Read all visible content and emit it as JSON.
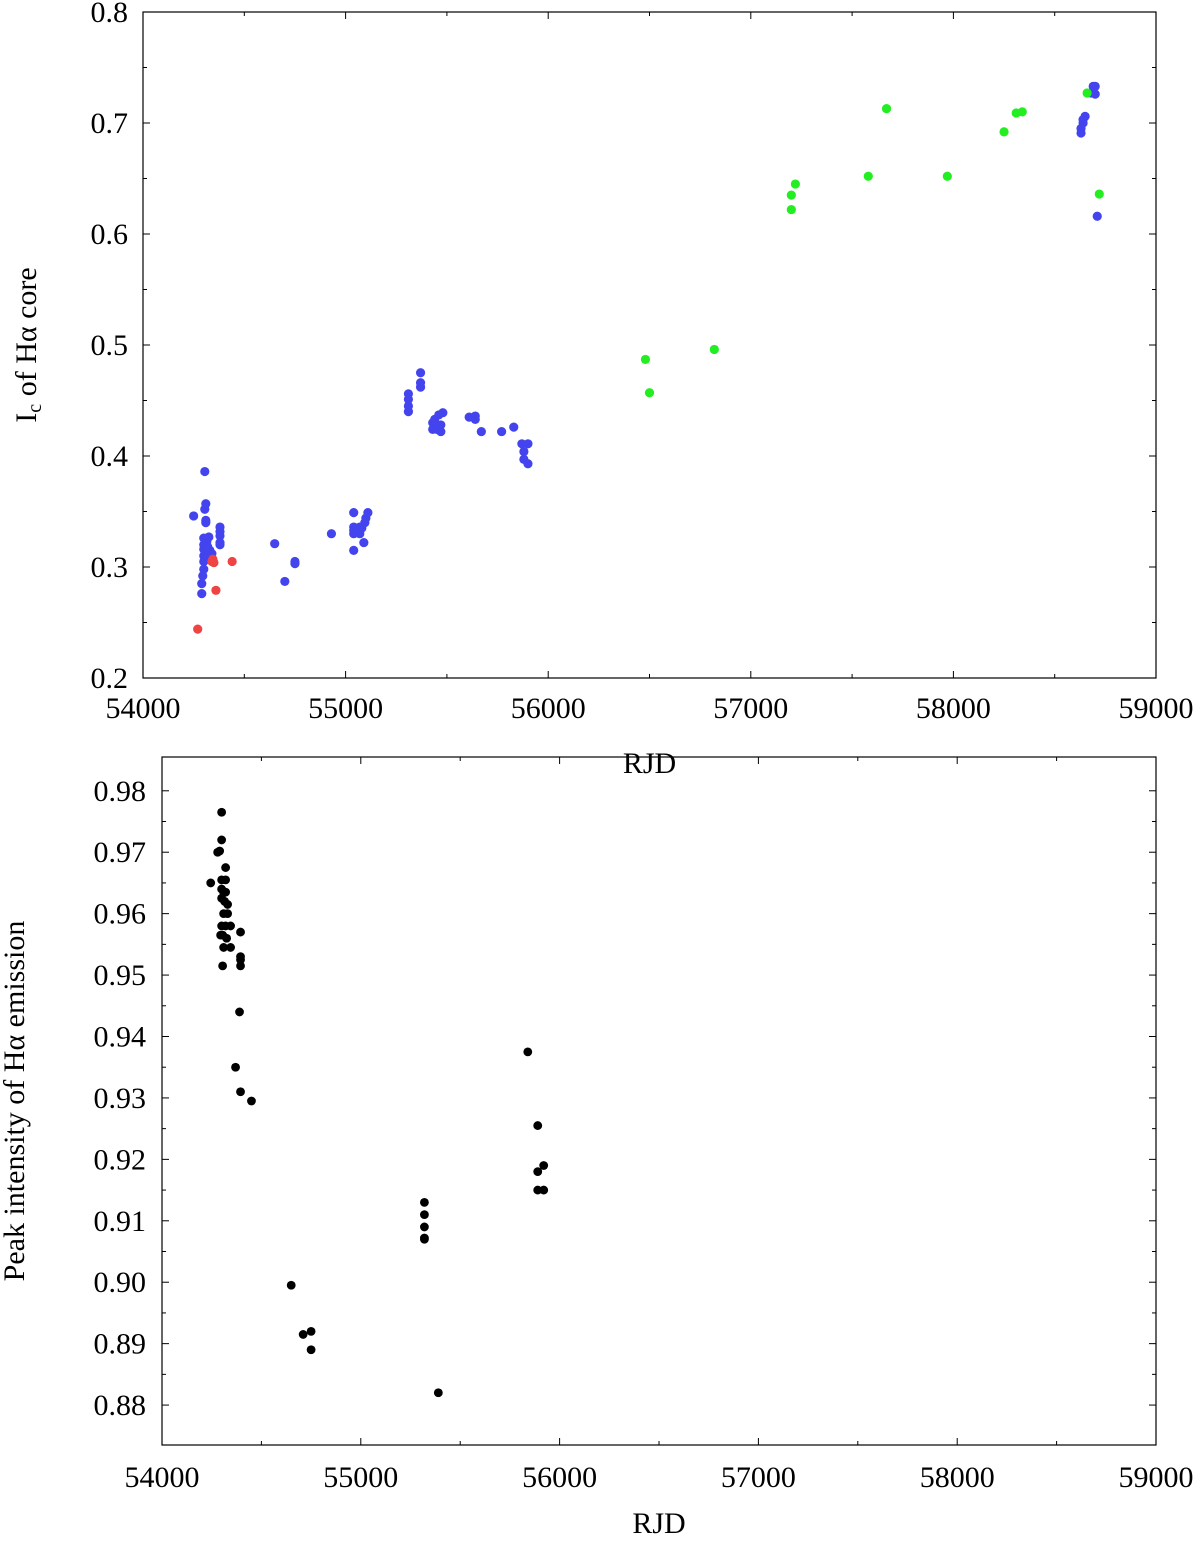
{
  "chart_data": [
    {
      "type": "scatter",
      "title": "",
      "xlabel": "RJD",
      "ylabel_parts": [
        "I",
        "c",
        " of Hα core"
      ],
      "xlim": [
        54000,
        59000
      ],
      "ylim": [
        0.2,
        0.8
      ],
      "xticks": [
        54000,
        55000,
        56000,
        57000,
        58000,
        59000
      ],
      "xtick_labels": [
        "54000",
        "55000",
        "56000",
        "57000",
        "58000",
        "59000"
      ],
      "yticks": [
        0.2,
        0.3,
        0.4,
        0.5,
        0.6,
        0.7,
        0.8
      ],
      "ytick_labels": [
        "0.2",
        "0.3",
        "0.4",
        "0.5",
        "0.6",
        "0.7",
        "0.8"
      ],
      "grid": false,
      "legend": "none",
      "series": [
        {
          "color": "#4444ee",
          "points": [
            [
              54250,
              0.346
            ],
            [
              54290,
              0.276
            ],
            [
              54290,
              0.285
            ],
            [
              54295,
              0.292
            ],
            [
              54300,
              0.298
            ],
            [
              54300,
              0.305
            ],
            [
              54300,
              0.31
            ],
            [
              54300,
              0.316
            ],
            [
              54300,
              0.32
            ],
            [
              54300,
              0.326
            ],
            [
              54305,
              0.386
            ],
            [
              54305,
              0.352
            ],
            [
              54310,
              0.357
            ],
            [
              54310,
              0.34
            ],
            [
              54310,
              0.342
            ],
            [
              54315,
              0.323
            ],
            [
              54320,
              0.318
            ],
            [
              54320,
              0.31
            ],
            [
              54325,
              0.327
            ],
            [
              54330,
              0.315
            ],
            [
              54340,
              0.312
            ],
            [
              54380,
              0.336
            ],
            [
              54380,
              0.332
            ],
            [
              54380,
              0.328
            ],
            [
              54380,
              0.322
            ],
            [
              54380,
              0.32
            ],
            [
              54650,
              0.321
            ],
            [
              54700,
              0.287
            ],
            [
              54750,
              0.303
            ],
            [
              54750,
              0.305
            ],
            [
              54930,
              0.33
            ],
            [
              55040,
              0.315
            ],
            [
              55040,
              0.33
            ],
            [
              55040,
              0.333
            ],
            [
              55040,
              0.336
            ],
            [
              55040,
              0.349
            ],
            [
              55070,
              0.33
            ],
            [
              55070,
              0.336
            ],
            [
              55080,
              0.335
            ],
            [
              55090,
              0.322
            ],
            [
              55095,
              0.34
            ],
            [
              55100,
              0.344
            ],
            [
              55110,
              0.349
            ],
            [
              55310,
              0.44
            ],
            [
              55310,
              0.445
            ],
            [
              55310,
              0.451
            ],
            [
              55310,
              0.456
            ],
            [
              55370,
              0.466
            ],
            [
              55370,
              0.475
            ],
            [
              55370,
              0.462
            ],
            [
              55430,
              0.424
            ],
            [
              55430,
              0.43
            ],
            [
              55440,
              0.433
            ],
            [
              55440,
              0.427
            ],
            [
              55450,
              0.424
            ],
            [
              55460,
              0.437
            ],
            [
              55470,
              0.422
            ],
            [
              55470,
              0.428
            ],
            [
              55480,
              0.439
            ],
            [
              55610,
              0.435
            ],
            [
              55640,
              0.436
            ],
            [
              55640,
              0.433
            ],
            [
              55670,
              0.422
            ],
            [
              55770,
              0.422
            ],
            [
              55830,
              0.426
            ],
            [
              55870,
              0.411
            ],
            [
              55880,
              0.404
            ],
            [
              55880,
              0.397
            ],
            [
              55900,
              0.393
            ],
            [
              55900,
              0.411
            ],
            [
              58630,
              0.691
            ],
            [
              58630,
              0.695
            ],
            [
              58640,
              0.7
            ],
            [
              58640,
              0.703
            ],
            [
              58650,
              0.706
            ],
            [
              58680,
              0.727
            ],
            [
              58690,
              0.729
            ],
            [
              58690,
              0.733
            ],
            [
              58700,
              0.733
            ],
            [
              58700,
              0.726
            ],
            [
              58710,
              0.616
            ]
          ]
        },
        {
          "color": "#ee4444",
          "points": [
            [
              54270,
              0.244
            ],
            [
              54340,
              0.305
            ],
            [
              54345,
              0.307
            ],
            [
              54350,
              0.304
            ],
            [
              54360,
              0.279
            ],
            [
              54440,
              0.305
            ]
          ]
        },
        {
          "color": "#22ee22",
          "points": [
            [
              56480,
              0.487
            ],
            [
              56500,
              0.457
            ],
            [
              56820,
              0.496
            ],
            [
              57200,
              0.622
            ],
            [
              57200,
              0.635
            ],
            [
              57220,
              0.645
            ],
            [
              57580,
              0.652
            ],
            [
              57670,
              0.713
            ],
            [
              57970,
              0.652
            ],
            [
              58250,
              0.692
            ],
            [
              58310,
              0.709
            ],
            [
              58340,
              0.71
            ],
            [
              58660,
              0.727
            ],
            [
              58720,
              0.636
            ]
          ]
        }
      ]
    },
    {
      "type": "scatter",
      "title": "",
      "xlabel": "RJD",
      "ylabel": "Peak intensity of Hα  emission",
      "xlim": [
        54000,
        59000
      ],
      "ylim": [
        0.8735,
        0.9855
      ],
      "xticks": [
        54000,
        55000,
        56000,
        57000,
        58000,
        59000
      ],
      "xtick_labels": [
        "54000",
        "55000",
        "56000",
        "57000",
        "58000",
        "59000"
      ],
      "yticks": [
        0.88,
        0.89,
        0.9,
        0.91,
        0.92,
        0.93,
        0.94,
        0.95,
        0.96,
        0.97,
        0.98
      ],
      "ytick_labels": [
        "0.88",
        "0.89",
        "0.90",
        "0.91",
        "0.92",
        "0.93",
        "0.94",
        "0.95",
        "0.96",
        "0.97",
        "0.98"
      ],
      "grid": false,
      "legend": "none",
      "series": [
        {
          "color": "#000000",
          "points": [
            [
              54245,
              0.965
            ],
            [
              54280,
              0.97
            ],
            [
              54290,
              0.9702
            ],
            [
              54295,
              0.9565
            ],
            [
              54300,
              0.9765
            ],
            [
              54300,
              0.972
            ],
            [
              54300,
              0.9655
            ],
            [
              54300,
              0.964
            ],
            [
              54300,
              0.9625
            ],
            [
              54300,
              0.958
            ],
            [
              54305,
              0.9515
            ],
            [
              54305,
              0.9565
            ],
            [
              54310,
              0.9545
            ],
            [
              54310,
              0.96
            ],
            [
              54310,
              0.9635
            ],
            [
              54315,
              0.962
            ],
            [
              54320,
              0.9675
            ],
            [
              54320,
              0.9655
            ],
            [
              54320,
              0.9635
            ],
            [
              54320,
              0.958
            ],
            [
              54325,
              0.956
            ],
            [
              54330,
              0.9615
            ],
            [
              54330,
              0.96
            ],
            [
              54345,
              0.958
            ],
            [
              54345,
              0.9545
            ],
            [
              54370,
              0.935
            ],
            [
              54390,
              0.944
            ],
            [
              54395,
              0.957
            ],
            [
              54395,
              0.953
            ],
            [
              54395,
              0.9525
            ],
            [
              54395,
              0.9515
            ],
            [
              54395,
              0.931
            ],
            [
              54450,
              0.9295
            ],
            [
              54650,
              0.8995
            ],
            [
              54710,
              0.8915
            ],
            [
              54750,
              0.892
            ],
            [
              54750,
              0.889
            ],
            [
              55320,
              0.913
            ],
            [
              55320,
              0.911
            ],
            [
              55320,
              0.909
            ],
            [
              55320,
              0.9072
            ],
            [
              55320,
              0.907
            ],
            [
              55390,
              0.882
            ],
            [
              55840,
              0.9375
            ],
            [
              55890,
              0.9255
            ],
            [
              55890,
              0.918
            ],
            [
              55890,
              0.915
            ],
            [
              55920,
              0.919
            ],
            [
              55920,
              0.915
            ]
          ]
        }
      ]
    }
  ]
}
